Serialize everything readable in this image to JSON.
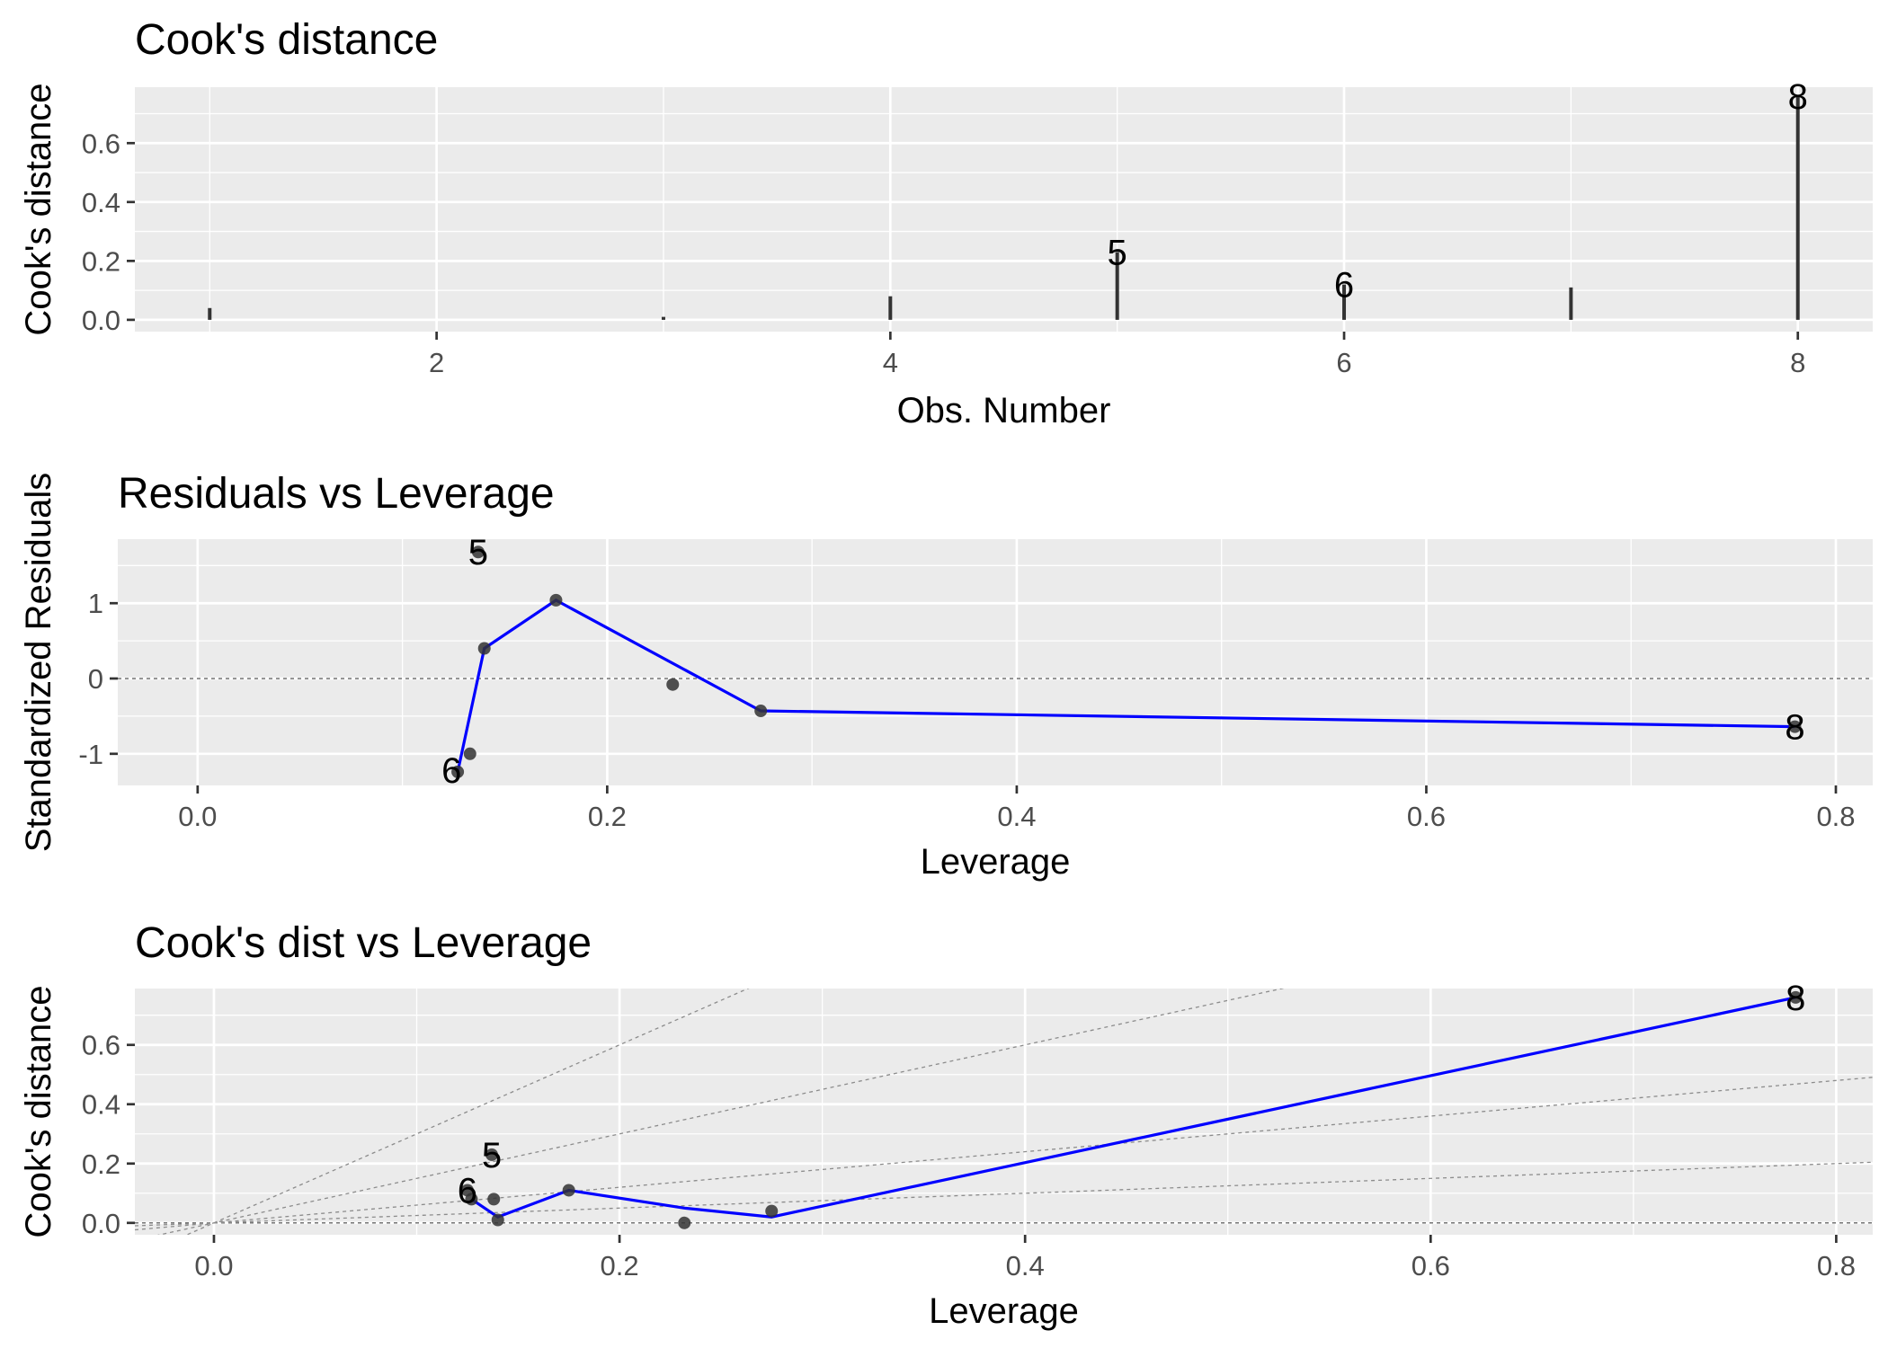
{
  "chart_data": [
    {
      "type": "bar",
      "title": "Cook's distance",
      "xlabel": "Obs. Number",
      "ylabel": "Cook's distance",
      "xlim": [
        0.67,
        8.33
      ],
      "ylim": [
        -0.04,
        0.79
      ],
      "xticks": [
        2,
        4,
        6,
        8
      ],
      "yticks": [
        0.0,
        0.2,
        0.4,
        0.6
      ],
      "xtick_labels": [
        "2",
        "4",
        "6",
        "8"
      ],
      "ytick_labels": [
        "0.0",
        "0.2",
        "0.4",
        "0.6"
      ],
      "grid": true,
      "x": [
        1,
        2,
        3,
        4,
        5,
        6,
        7,
        8
      ],
      "values": [
        0.04,
        0.0,
        0.01,
        0.08,
        0.23,
        0.12,
        0.11,
        0.76
      ],
      "point_labels": [
        {
          "text": "5",
          "x": 5,
          "y": 0.23
        },
        {
          "text": "6",
          "x": 6,
          "y": 0.12
        },
        {
          "text": "8",
          "x": 8,
          "y": 0.76
        }
      ]
    },
    {
      "type": "scatter",
      "title": "Residuals vs Leverage",
      "xlabel": "Leverage",
      "ylabel": "Standardized Residuals",
      "xlim": [
        -0.039,
        0.818
      ],
      "ylim": [
        -1.42,
        1.85
      ],
      "xticks": [
        0.0,
        0.2,
        0.4,
        0.6,
        0.8
      ],
      "yticks": [
        -1,
        0,
        1
      ],
      "xtick_labels": [
        "0.0",
        "0.2",
        "0.4",
        "0.6",
        "0.8"
      ],
      "ytick_labels": [
        "-1",
        "0",
        "1"
      ],
      "grid": true,
      "points": [
        {
          "x": 0.127,
          "y": -1.24
        },
        {
          "x": 0.133,
          "y": -1.0
        },
        {
          "x": 0.137,
          "y": 1.68
        },
        {
          "x": 0.14,
          "y": 0.4
        },
        {
          "x": 0.175,
          "y": 1.04
        },
        {
          "x": 0.232,
          "y": -0.08
        },
        {
          "x": 0.275,
          "y": -0.43
        },
        {
          "x": 0.78,
          "y": -0.64
        }
      ],
      "smooth": [
        {
          "x": 0.127,
          "y": -1.24
        },
        {
          "x": 0.14,
          "y": 0.4
        },
        {
          "x": 0.175,
          "y": 1.04
        },
        {
          "x": 0.275,
          "y": -0.43
        },
        {
          "x": 0.78,
          "y": -0.64
        }
      ],
      "point_labels": [
        {
          "text": "5",
          "x": 0.137,
          "y": 1.68
        },
        {
          "text": "6",
          "x": 0.124,
          "y": -1.22
        },
        {
          "text": "8",
          "x": 0.78,
          "y": -0.64
        }
      ]
    },
    {
      "type": "scatter",
      "title": "Cook's dist vs Leverage",
      "xlabel": "Leverage",
      "ylabel": "Cook's distance",
      "xlim": [
        -0.039,
        0.818
      ],
      "ylim": [
        -0.04,
        0.79
      ],
      "xticks": [
        0.0,
        0.2,
        0.4,
        0.6,
        0.8
      ],
      "yticks": [
        0.0,
        0.2,
        0.4,
        0.6
      ],
      "xtick_labels": [
        "0.0",
        "0.2",
        "0.4",
        "0.6",
        "0.8"
      ],
      "ytick_labels": [
        "0.0",
        "0.2",
        "0.4",
        "0.6"
      ],
      "grid": true,
      "points": [
        {
          "x": 0.125,
          "y": 0.11
        },
        {
          "x": 0.127,
          "y": 0.08
        },
        {
          "x": 0.137,
          "y": 0.23
        },
        {
          "x": 0.138,
          "y": 0.08
        },
        {
          "x": 0.14,
          "y": 0.01
        },
        {
          "x": 0.175,
          "y": 0.11
        },
        {
          "x": 0.232,
          "y": 0.0
        },
        {
          "x": 0.275,
          "y": 0.04
        },
        {
          "x": 0.78,
          "y": 0.76
        }
      ],
      "smooth": [
        {
          "x": 0.127,
          "y": 0.08
        },
        {
          "x": 0.14,
          "y": 0.02
        },
        {
          "x": 0.175,
          "y": 0.11
        },
        {
          "x": 0.232,
          "y": 0.05
        },
        {
          "x": 0.275,
          "y": 0.02
        },
        {
          "x": 0.78,
          "y": 0.76
        }
      ],
      "contour_slopes": [
        0.25,
        0.6,
        1.5,
        3.0
      ],
      "point_labels": [
        {
          "text": "5",
          "x": 0.137,
          "y": 0.23
        },
        {
          "text": "6",
          "x": 0.125,
          "y": 0.11
        },
        {
          "text": "8",
          "x": 0.78,
          "y": 0.76
        }
      ]
    }
  ]
}
